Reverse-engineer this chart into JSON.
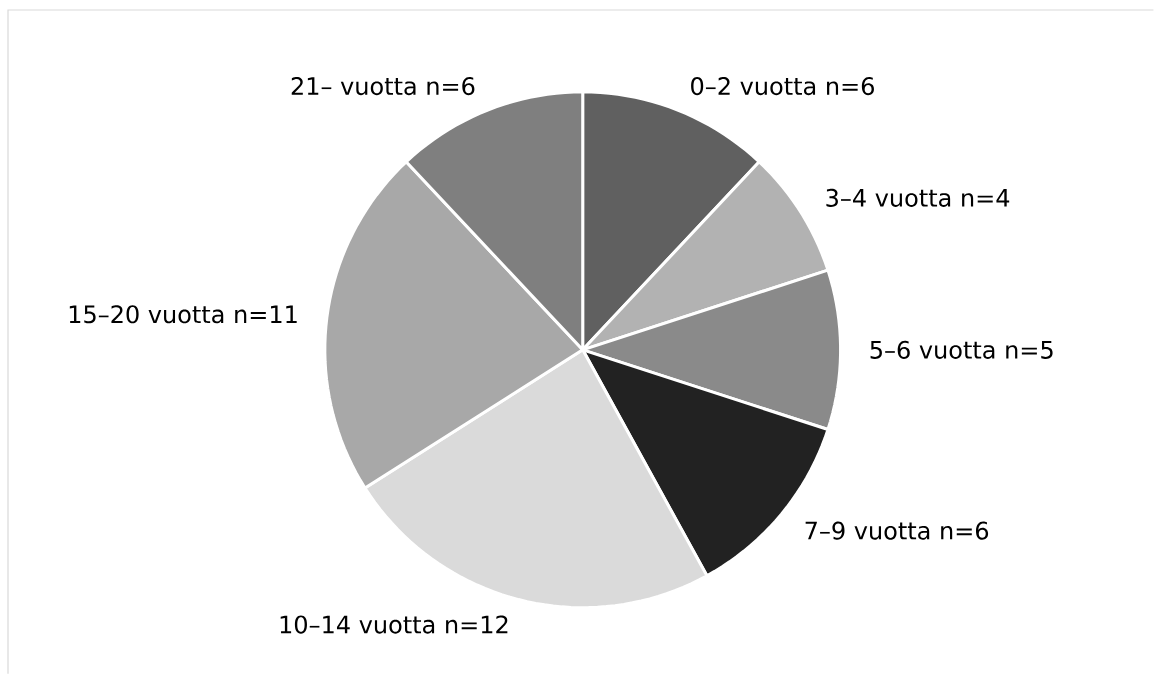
{
  "chart_data": {
    "type": "pie",
    "categories": [
      "0–2 vuotta",
      "3–4 vuotta",
      "5–6 vuotta",
      "7–9 vuotta",
      "10–14 vuotta",
      "15–20 vuotta",
      "21– vuotta"
    ],
    "values": [
      6,
      4,
      5,
      6,
      12,
      11,
      6
    ],
    "value_labels": [
      "n=6",
      "n=4",
      "n=5",
      "n=6",
      "n=12",
      "n=11",
      "n=6"
    ],
    "colors": [
      "#606060",
      "#b2b2b2",
      "#8a8a8a",
      "#222222",
      "#dadada",
      "#a8a8a8",
      "#7f7f7f"
    ]
  }
}
